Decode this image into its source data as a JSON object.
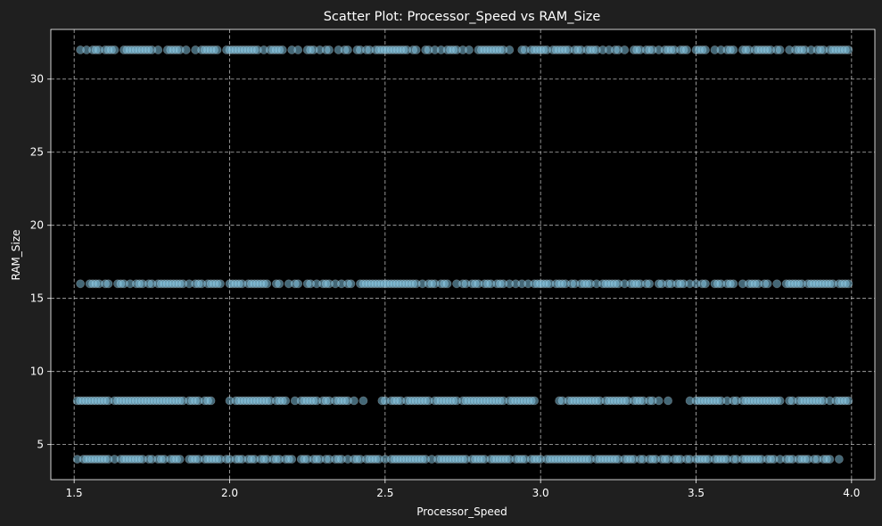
{
  "chart_data": {
    "type": "scatter",
    "title": "Scatter Plot: Processor_Speed vs RAM_Size",
    "xlabel": "Processor_Speed",
    "ylabel": "RAM_Size",
    "xlim": [
      1.425,
      4.075
    ],
    "ylim": [
      2.6,
      33.4
    ],
    "xticks": [
      1.5,
      2.0,
      2.5,
      3.0,
      3.5,
      4.0
    ],
    "xtick_labels": [
      "1.5",
      "2.0",
      "2.5",
      "3.0",
      "3.5",
      "4.0"
    ],
    "yticks": [
      5,
      10,
      15,
      20,
      25,
      30
    ],
    "ytick_labels": [
      "5",
      "10",
      "15",
      "20",
      "25",
      "30"
    ],
    "grid": true,
    "colors": {
      "figure_background": "#1f1f1f",
      "plot_background": "#000000",
      "marker": "#87ceeb",
      "marker_edge": "#ffffff",
      "grid": "#d9d9d9",
      "text": "#ffffff"
    },
    "marker_alpha": 0.5,
    "series": [
      {
        "y_value": 32,
        "x": [
          1.52,
          1.54,
          1.56,
          1.57,
          1.58,
          1.6,
          1.61,
          1.62,
          1.63,
          1.66,
          1.67,
          1.68,
          1.69,
          1.7,
          1.71,
          1.72,
          1.73,
          1.74,
          1.75,
          1.77,
          1.8,
          1.81,
          1.82,
          1.83,
          1.84,
          1.86,
          1.89,
          1.91,
          1.92,
          1.93,
          1.94,
          1.95,
          1.96,
          1.99,
          2.0,
          2.01,
          2.02,
          2.03,
          2.04,
          2.05,
          2.06,
          2.07,
          2.08,
          2.09,
          2.11,
          2.13,
          2.14,
          2.15,
          2.16,
          2.17,
          2.2,
          2.22,
          2.25,
          2.26,
          2.27,
          2.29,
          2.31,
          2.32,
          2.35,
          2.37,
          2.38,
          2.41,
          2.42,
          2.44,
          2.45,
          2.47,
          2.48,
          2.49,
          2.5,
          2.51,
          2.52,
          2.53,
          2.54,
          2.55,
          2.56,
          2.57,
          2.59,
          2.6,
          2.63,
          2.64,
          2.66,
          2.68,
          2.7,
          2.71,
          2.72,
          2.73,
          2.75,
          2.77,
          2.8,
          2.81,
          2.82,
          2.83,
          2.84,
          2.85,
          2.86,
          2.87,
          2.88,
          2.9,
          2.94,
          2.95,
          2.97,
          2.98,
          2.99,
          3.0,
          3.01,
          3.02,
          3.04,
          3.05,
          3.06,
          3.07,
          3.08,
          3.09,
          3.11,
          3.12,
          3.13,
          3.15,
          3.16,
          3.17,
          3.18,
          3.2,
          3.22,
          3.24,
          3.25,
          3.27,
          3.3,
          3.31,
          3.32,
          3.34,
          3.35,
          3.36,
          3.38,
          3.4,
          3.41,
          3.42,
          3.43,
          3.45,
          3.46,
          3.47,
          3.5,
          3.51,
          3.52,
          3.53,
          3.56,
          3.58,
          3.6,
          3.61,
          3.62,
          3.65,
          3.66,
          3.67,
          3.69,
          3.7,
          3.71,
          3.72,
          3.73,
          3.74,
          3.76,
          3.77,
          3.8,
          3.82,
          3.83,
          3.84,
          3.85,
          3.87,
          3.89,
          3.9,
          3.91,
          3.93,
          3.94,
          3.95,
          3.96,
          3.97,
          3.98,
          3.99
        ]
      },
      {
        "y_value": 16,
        "x": [
          1.52,
          1.55,
          1.56,
          1.57,
          1.58,
          1.6,
          1.61,
          1.64,
          1.65,
          1.66,
          1.68,
          1.7,
          1.71,
          1.72,
          1.74,
          1.75,
          1.77,
          1.78,
          1.79,
          1.8,
          1.81,
          1.82,
          1.83,
          1.84,
          1.85,
          1.87,
          1.89,
          1.9,
          1.91,
          1.93,
          1.94,
          1.95,
          1.96,
          1.97,
          2.0,
          2.01,
          2.02,
          2.03,
          2.04,
          2.06,
          2.07,
          2.08,
          2.09,
          2.1,
          2.11,
          2.12,
          2.15,
          2.16,
          2.19,
          2.21,
          2.22,
          2.25,
          2.26,
          2.28,
          2.3,
          2.31,
          2.32,
          2.34,
          2.36,
          2.38,
          2.39,
          2.42,
          2.43,
          2.44,
          2.45,
          2.46,
          2.47,
          2.48,
          2.49,
          2.5,
          2.51,
          2.52,
          2.53,
          2.54,
          2.55,
          2.56,
          2.57,
          2.58,
          2.59,
          2.6,
          2.62,
          2.64,
          2.65,
          2.66,
          2.68,
          2.69,
          2.7,
          2.73,
          2.75,
          2.76,
          2.78,
          2.79,
          2.8,
          2.82,
          2.83,
          2.84,
          2.86,
          2.87,
          2.88,
          2.9,
          2.92,
          2.94,
          2.96,
          2.98,
          2.99,
          3.0,
          3.01,
          3.02,
          3.03,
          3.05,
          3.06,
          3.07,
          3.08,
          3.1,
          3.11,
          3.13,
          3.14,
          3.15,
          3.16,
          3.18,
          3.2,
          3.21,
          3.22,
          3.23,
          3.24,
          3.25,
          3.27,
          3.29,
          3.3,
          3.31,
          3.32,
          3.34,
          3.35,
          3.38,
          3.39,
          3.41,
          3.42,
          3.44,
          3.45,
          3.46,
          3.48,
          3.5,
          3.52,
          3.53,
          3.56,
          3.57,
          3.58,
          3.6,
          3.61,
          3.62,
          3.65,
          3.67,
          3.68,
          3.69,
          3.7,
          3.72,
          3.73,
          3.76,
          3.79,
          3.8,
          3.81,
          3.82,
          3.83,
          3.84,
          3.86,
          3.87,
          3.88,
          3.89,
          3.9,
          3.91,
          3.92,
          3.93,
          3.94,
          3.96,
          3.97,
          3.98,
          3.99
        ]
      },
      {
        "y_value": 8,
        "x": [
          1.51,
          1.52,
          1.53,
          1.54,
          1.55,
          1.56,
          1.57,
          1.58,
          1.59,
          1.6,
          1.61,
          1.63,
          1.64,
          1.65,
          1.66,
          1.67,
          1.68,
          1.69,
          1.7,
          1.71,
          1.72,
          1.73,
          1.74,
          1.75,
          1.76,
          1.77,
          1.78,
          1.79,
          1.8,
          1.81,
          1.82,
          1.83,
          1.84,
          1.85,
          1.87,
          1.88,
          1.89,
          1.9,
          1.92,
          1.93,
          1.94,
          2.0,
          2.02,
          2.03,
          2.04,
          2.05,
          2.06,
          2.07,
          2.08,
          2.09,
          2.1,
          2.11,
          2.12,
          2.13,
          2.15,
          2.16,
          2.17,
          2.18,
          2.21,
          2.23,
          2.24,
          2.25,
          2.26,
          2.27,
          2.28,
          2.3,
          2.31,
          2.32,
          2.34,
          2.35,
          2.36,
          2.37,
          2.38,
          2.4,
          2.43,
          2.49,
          2.5,
          2.52,
          2.53,
          2.54,
          2.55,
          2.57,
          2.58,
          2.59,
          2.6,
          2.61,
          2.62,
          2.63,
          2.64,
          2.66,
          2.67,
          2.68,
          2.69,
          2.7,
          2.71,
          2.72,
          2.73,
          2.75,
          2.76,
          2.77,
          2.78,
          2.79,
          2.8,
          2.81,
          2.82,
          2.83,
          2.84,
          2.85,
          2.86,
          2.87,
          2.88,
          2.9,
          2.91,
          2.92,
          2.93,
          2.94,
          2.95,
          2.96,
          2.97,
          2.98,
          3.06,
          3.07,
          3.09,
          3.1,
          3.11,
          3.12,
          3.13,
          3.14,
          3.15,
          3.16,
          3.17,
          3.18,
          3.19,
          3.21,
          3.22,
          3.23,
          3.24,
          3.25,
          3.26,
          3.27,
          3.28,
          3.3,
          3.31,
          3.32,
          3.33,
          3.35,
          3.36,
          3.38,
          3.41,
          3.48,
          3.5,
          3.51,
          3.52,
          3.53,
          3.54,
          3.55,
          3.56,
          3.57,
          3.58,
          3.6,
          3.62,
          3.63,
          3.65,
          3.66,
          3.67,
          3.68,
          3.69,
          3.7,
          3.71,
          3.72,
          3.73,
          3.74,
          3.75,
          3.76,
          3.77,
          3.8,
          3.81,
          3.83,
          3.84,
          3.85,
          3.86,
          3.87,
          3.88,
          3.89,
          3.9,
          3.91,
          3.93,
          3.95,
          3.96,
          3.97,
          3.98,
          3.99
        ]
      },
      {
        "y_value": 4,
        "x": [
          1.51,
          1.53,
          1.54,
          1.55,
          1.56,
          1.57,
          1.58,
          1.59,
          1.6,
          1.61,
          1.63,
          1.65,
          1.66,
          1.67,
          1.68,
          1.69,
          1.7,
          1.71,
          1.72,
          1.74,
          1.75,
          1.77,
          1.78,
          1.79,
          1.81,
          1.82,
          1.83,
          1.84,
          1.87,
          1.88,
          1.89,
          1.9,
          1.92,
          1.93,
          1.94,
          1.95,
          1.96,
          1.97,
          1.99,
          2.0,
          2.02,
          2.03,
          2.04,
          2.06,
          2.07,
          2.08,
          2.1,
          2.11,
          2.12,
          2.14,
          2.15,
          2.16,
          2.18,
          2.19,
          2.2,
          2.23,
          2.24,
          2.25,
          2.27,
          2.28,
          2.29,
          2.31,
          2.32,
          2.34,
          2.35,
          2.36,
          2.38,
          2.4,
          2.41,
          2.42,
          2.44,
          2.45,
          2.46,
          2.47,
          2.48,
          2.5,
          2.52,
          2.53,
          2.54,
          2.55,
          2.56,
          2.57,
          2.58,
          2.59,
          2.6,
          2.61,
          2.62,
          2.63,
          2.65,
          2.67,
          2.68,
          2.69,
          2.7,
          2.71,
          2.72,
          2.73,
          2.74,
          2.75,
          2.76,
          2.78,
          2.79,
          2.8,
          2.81,
          2.82,
          2.84,
          2.85,
          2.86,
          2.87,
          2.88,
          2.89,
          2.9,
          2.92,
          2.93,
          2.94,
          2.95,
          2.97,
          2.98,
          2.99,
          3.0,
          3.02,
          3.03,
          3.04,
          3.05,
          3.06,
          3.07,
          3.08,
          3.09,
          3.1,
          3.11,
          3.12,
          3.13,
          3.14,
          3.15,
          3.16,
          3.18,
          3.19,
          3.2,
          3.21,
          3.22,
          3.23,
          3.24,
          3.25,
          3.27,
          3.28,
          3.29,
          3.3,
          3.32,
          3.33,
          3.35,
          3.36,
          3.37,
          3.39,
          3.4,
          3.41,
          3.43,
          3.44,
          3.45,
          3.47,
          3.48,
          3.5,
          3.51,
          3.52,
          3.53,
          3.54,
          3.56,
          3.57,
          3.58,
          3.59,
          3.6,
          3.62,
          3.63,
          3.65,
          3.66,
          3.67,
          3.68,
          3.69,
          3.7,
          3.71,
          3.73,
          3.74,
          3.75,
          3.77,
          3.79,
          3.8,
          3.81,
          3.83,
          3.84,
          3.85,
          3.86,
          3.88,
          3.89,
          3.91,
          3.92,
          3.93,
          3.96
        ]
      }
    ]
  }
}
